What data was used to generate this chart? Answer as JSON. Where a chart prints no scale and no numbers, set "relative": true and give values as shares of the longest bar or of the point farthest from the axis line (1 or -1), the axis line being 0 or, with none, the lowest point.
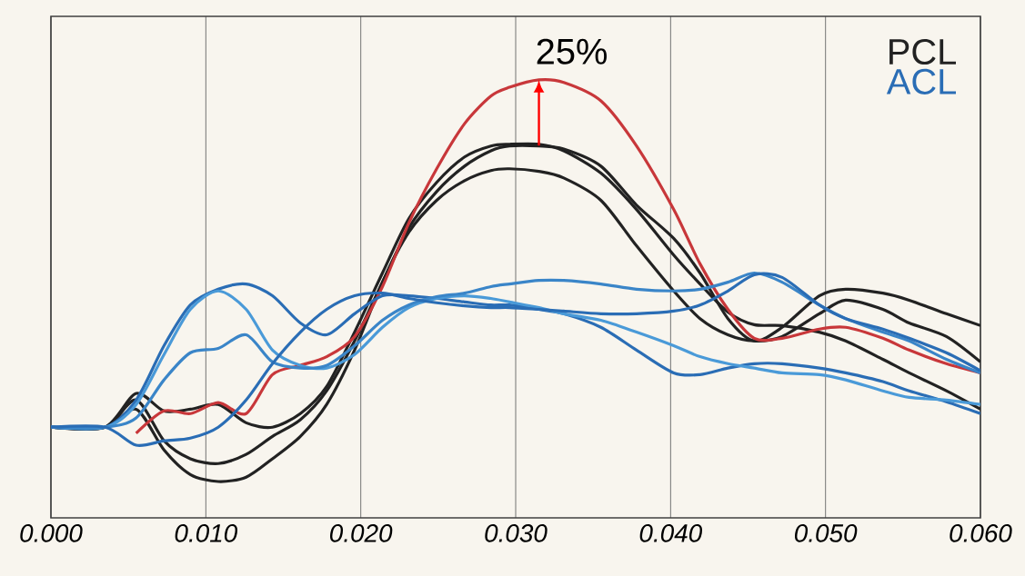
{
  "chart_data": {
    "type": "line",
    "relative": true,
    "x": [
      0,
      0.0035,
      0.0055,
      0.0073,
      0.009,
      0.0108,
      0.0126,
      0.0143,
      0.0161,
      0.0178,
      0.0196,
      0.0214,
      0.0231,
      0.0249,
      0.0267,
      0.0284,
      0.0296,
      0.0315,
      0.0331,
      0.0355,
      0.0378,
      0.0402,
      0.0419,
      0.0437,
      0.0454,
      0.0472,
      0.0496,
      0.0513,
      0.0537,
      0.0554,
      0.0578,
      0.06
    ],
    "series": [
      {
        "name": "PCL",
        "color": "#222222",
        "values": [
          0.207,
          0.207,
          0.284,
          0.244,
          0.248,
          0.259,
          0.217,
          0.207,
          0.238,
          0.3,
          0.424,
          0.559,
          0.683,
          0.766,
          0.824,
          0.849,
          0.853,
          0.853,
          0.838,
          0.787,
          0.704,
          0.6,
          0.534,
          0.47,
          0.441,
          0.439,
          0.424,
          0.404,
          0.362,
          0.331,
          0.29,
          0.248
        ]
      },
      {
        "color": "#222222",
        "values": [
          0.207,
          0.207,
          0.269,
          0.176,
          0.135,
          0.124,
          0.145,
          0.186,
          0.224,
          0.29,
          0.404,
          0.538,
          0.662,
          0.745,
          0.803,
          0.838,
          0.849,
          0.849,
          0.842,
          0.803,
          0.714,
          0.638,
          0.559,
          0.455,
          0.404,
          0.435,
          0.507,
          0.522,
          0.513,
          0.497,
          0.466,
          0.439
        ]
      },
      {
        "color": "#222222",
        "values": [
          0.207,
          0.207,
          0.248,
          0.155,
          0.099,
          0.083,
          0.093,
          0.135,
          0.186,
          0.259,
          0.383,
          0.538,
          0.652,
          0.725,
          0.77,
          0.793,
          0.797,
          0.791,
          0.776,
          0.725,
          0.621,
          0.518,
          0.455,
          0.418,
          0.404,
          0.414,
          0.466,
          0.497,
          0.476,
          0.445,
          0.414,
          0.356
        ]
      },
      {
        "color": "#c8373a",
        "values": [
          null,
          null,
          0.193,
          0.244,
          0.238,
          0.263,
          0.238,
          0.327,
          0.348,
          0.368,
          0.414,
          0.528,
          0.673,
          0.797,
          0.9,
          0.963,
          0.983,
          1,
          0.994,
          0.952,
          0.849,
          0.704,
          0.58,
          0.476,
          0.41,
          0.41,
          0.431,
          0.435,
          0.41,
          0.383,
          0.352,
          0.331
        ]
      },
      {
        "name": "ACL",
        "color": "#2a6db5",
        "values": [
          0.207,
          0.207,
          0.269,
          0.393,
          0.486,
          0.522,
          0.534,
          0.507,
          0.445,
          0.418,
          0.466,
          0.507,
          0.507,
          0.501,
          0.493,
          0.486,
          0.486,
          0.476,
          0.466,
          0.435,
          0.383,
          0.331,
          0.327,
          0.342,
          0.352,
          0.352,
          0.342,
          0.331,
          0.311,
          0.29,
          0.265,
          0.238
        ]
      },
      {
        "color": "#4a9ad8",
        "values": [
          0.207,
          0.207,
          0.259,
          0.373,
          0.476,
          0.518,
          0.476,
          0.383,
          0.348,
          0.342,
          0.373,
          0.435,
          0.48,
          0.501,
          0.507,
          0.501,
          0.493,
          0.48,
          0.466,
          0.451,
          0.424,
          0.393,
          0.368,
          0.352,
          0.342,
          0.331,
          0.327,
          0.315,
          0.29,
          0.275,
          0.269,
          0.259
        ]
      },
      {
        "color": "#3a85c8",
        "values": [
          0.207,
          0.207,
          0.228,
          0.315,
          0.377,
          0.387,
          0.418,
          0.356,
          0.342,
          0.348,
          0.393,
          0.451,
          0.486,
          0.505,
          0.513,
          0.528,
          0.534,
          0.542,
          0.542,
          0.534,
          0.522,
          0.518,
          0.522,
          0.538,
          0.559,
          0.538,
          0.486,
          0.455,
          0.424,
          0.404,
          0.362,
          0.331
        ]
      },
      {
        "color": "#2a6db5",
        "values": [
          0.207,
          0.207,
          0.166,
          0.176,
          0.182,
          0.207,
          0.269,
          0.352,
          0.424,
          0.476,
          0.507,
          0.513,
          0.501,
          0.491,
          0.484,
          0.48,
          0.48,
          0.476,
          0.472,
          0.466,
          0.466,
          0.472,
          0.486,
          0.518,
          0.555,
          0.549,
          0.486,
          0.455,
          0.431,
          0.41,
          0.377,
          0.336
        ]
      }
    ],
    "xlim": [
      0,
      0.06
    ],
    "xticks": [
      {
        "value": 0,
        "label": "0.000"
      },
      {
        "value": 0.01,
        "label": "0.010"
      },
      {
        "value": 0.02,
        "label": "0.020"
      },
      {
        "value": 0.03,
        "label": "0.030"
      },
      {
        "value": 0.04,
        "label": "0.040"
      },
      {
        "value": 0.05,
        "label": "0.050"
      },
      {
        "value": 0.06,
        "label": "0.060"
      }
    ],
    "annotations": [
      {
        "text": "25%",
        "x": 0.0315,
        "y": 1
      }
    ],
    "grid": "x",
    "legend": "top right",
    "marker": "none",
    "line_style": "solid"
  }
}
